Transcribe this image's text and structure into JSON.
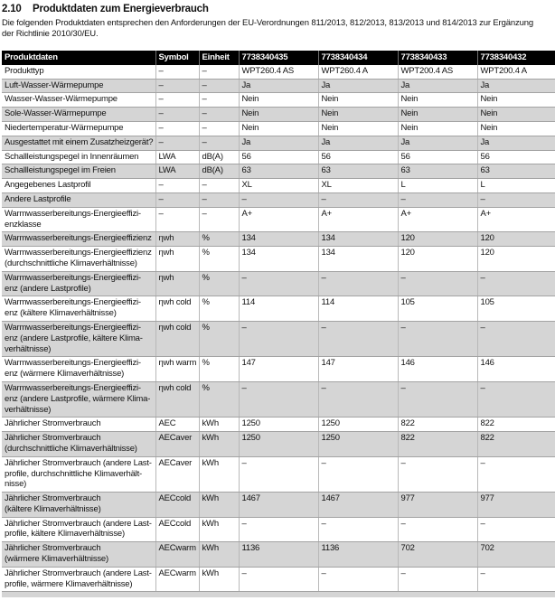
{
  "page": {
    "section_number": "2.10",
    "title": "Produktdaten zum Energieverbrauch",
    "intro": "Die folgenden Produktdaten entsprechen den Anforderungen der EU-Verordnungen 811/2013, 812/2013, 813/2013 und 814/2013 zur Ergänzung\nder Richtlinie 2010/30/EU."
  },
  "table": {
    "columns": [
      "Produktdaten",
      "Symbol",
      "Einheit",
      "7738340435",
      "7738340434",
      "7738340433",
      "7738340432"
    ],
    "rows": [
      {
        "label": "Produkttyp",
        "symbol": "–",
        "unit": "–",
        "values": [
          "WPT260.4 AS",
          "WPT260.4 A",
          "WPT200.4 AS",
          "WPT200.4 A"
        ]
      },
      {
        "label": "Luft-Wasser-Wärmepumpe",
        "symbol": "–",
        "unit": "–",
        "values": [
          "Ja",
          "Ja",
          "Ja",
          "Ja"
        ]
      },
      {
        "label": "Wasser-Wasser-Wärmepumpe",
        "symbol": "–",
        "unit": "–",
        "values": [
          "Nein",
          "Nein",
          "Nein",
          "Nein"
        ]
      },
      {
        "label": "Sole-Wasser-Wärmepumpe",
        "symbol": "–",
        "unit": "–",
        "values": [
          "Nein",
          "Nein",
          "Nein",
          "Nein"
        ]
      },
      {
        "label": "Niedertemperatur-Wärmepumpe",
        "symbol": "–",
        "unit": "–",
        "values": [
          "Nein",
          "Nein",
          "Nein",
          "Nein"
        ]
      },
      {
        "label": "Ausgestattet mit einem Zusatzheizgerät?",
        "symbol": "–",
        "unit": "–",
        "values": [
          "Ja",
          "Ja",
          "Ja",
          "Ja"
        ]
      },
      {
        "label": "Schallleistungspegel in Innenräumen",
        "symbol": "LWA",
        "unit": "dB(A)",
        "values": [
          "56",
          "56",
          "56",
          "56"
        ]
      },
      {
        "label": "Schallleistungspegel im Freien",
        "symbol": "LWA",
        "unit": "dB(A)",
        "values": [
          "63",
          "63",
          "63",
          "63"
        ]
      },
      {
        "label": "Angegebenes Lastprofil",
        "symbol": "–",
        "unit": "–",
        "values": [
          "XL",
          "XL",
          "L",
          "L"
        ]
      },
      {
        "label": "Andere Lastprofile",
        "symbol": "–",
        "unit": "–",
        "values": [
          "–",
          "–",
          "–",
          "–"
        ]
      },
      {
        "label": "Warmwasserbereitungs-Energieeffizi-\nenzklasse",
        "symbol": "–",
        "unit": "–",
        "values": [
          "A+",
          "A+",
          "A+",
          "A+"
        ]
      },
      {
        "label": "Warmwasserbereitungs-Energieeffizienz",
        "symbol": "ηwh",
        "unit": "%",
        "values": [
          "134",
          "134",
          "120",
          "120"
        ]
      },
      {
        "label": "Warmwasserbereitungs-Energieeffizienz\n(durchschnittliche Klimaverhältnisse)",
        "symbol": "ηwh",
        "unit": "%",
        "values": [
          "134",
          "134",
          "120",
          "120"
        ]
      },
      {
        "label": "Warmwasserbereitungs-Energieeffizi-\nenz (andere Lastprofile)",
        "symbol": "ηwh",
        "unit": "%",
        "values": [
          "–",
          "–",
          "–",
          "–"
        ]
      },
      {
        "label": "Warmwasserbereitungs-Energieeffizi-\nenz (kältere Klimaverhältnisse)",
        "symbol": "ηwh cold",
        "unit": "%",
        "values": [
          "114",
          "114",
          "105",
          "105"
        ]
      },
      {
        "label": "Warmwasserbereitungs-Energieeffizi-\nenz (andere Lastprofile, kältere Klima-\nverhältnisse)",
        "symbol": "ηwh cold",
        "unit": "%",
        "values": [
          "–",
          "–",
          "–",
          "–"
        ]
      },
      {
        "label": "Warmwasserbereitungs-Energieeffizi-\nenz (wärmere Klimaverhältnisse)",
        "symbol": "ηwh warm",
        "unit": "%",
        "values": [
          "147",
          "147",
          "146",
          "146"
        ]
      },
      {
        "label": "Warmwasserbereitungs-Energieeffizi-\nenz (andere Lastprofile, wärmere Klima-\nverhältnisse)",
        "symbol": "ηwh cold",
        "unit": "%",
        "values": [
          "–",
          "–",
          "–",
          "–"
        ]
      },
      {
        "label": "Jährlicher Stromverbrauch",
        "symbol": "AEC",
        "unit": "kWh",
        "values": [
          "1250",
          "1250",
          "822",
          "822"
        ]
      },
      {
        "label": "Jährlicher Stromverbrauch\n(durchschnittliche Klimaverhältnisse)",
        "symbol": "AECaver",
        "unit": "kWh",
        "values": [
          "1250",
          "1250",
          "822",
          "822"
        ]
      },
      {
        "label": "Jährlicher Stromverbrauch (andere Last-\nprofile, durchschnittliche Klimaverhält-\nnisse)",
        "symbol": "AECaver",
        "unit": "kWh",
        "values": [
          "–",
          "–",
          "–",
          "–"
        ]
      },
      {
        "label": "Jährlicher Stromverbrauch\n(kältere Klimaverhältnisse)",
        "symbol": "AECcold",
        "unit": "kWh",
        "values": [
          "1467",
          "1467",
          "977",
          "977"
        ]
      },
      {
        "label": "Jährlicher Stromverbrauch (andere Last-\nprofile, kältere Klimaverhältnisse)",
        "symbol": "AECcold",
        "unit": "kWh",
        "values": [
          "–",
          "–",
          "–",
          "–"
        ]
      },
      {
        "label": "Jährlicher Stromverbrauch\n(wärmere Klimaverhältnisse)",
        "symbol": "AECwarm",
        "unit": "kWh",
        "values": [
          "1136",
          "1136",
          "702",
          "702"
        ]
      },
      {
        "label": "Jährlicher Stromverbrauch (andere Last-\nprofile, wärmere Klimaverhältnisse)",
        "symbol": "AECwarm",
        "unit": "kWh",
        "values": [
          "–",
          "–",
          "–",
          "–"
        ]
      }
    ]
  },
  "colors": {
    "header_bg": "#000000",
    "header_text": "#ffffff",
    "stripe": "#d5d5d5",
    "grid_horizontal": "#a3a3a3",
    "grid_vertical": "#b8b8b8",
    "text": "#111111"
  }
}
